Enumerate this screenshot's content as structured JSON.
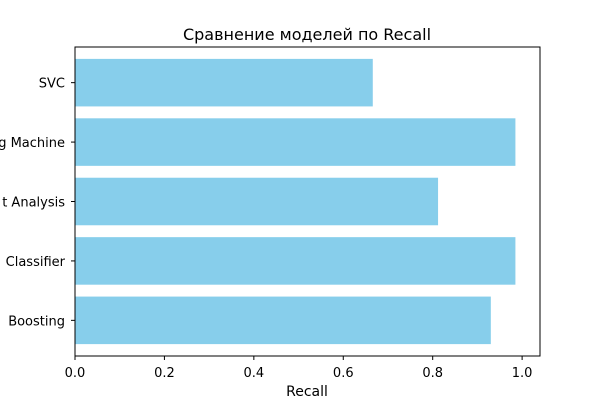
{
  "chart_data": {
    "type": "bar",
    "orientation": "horizontal",
    "title": "Сравнение моделей по Recall",
    "xlabel": "Recall",
    "ylabel": "",
    "categories": [
      "SVC",
      "g Machine",
      "t Analysis",
      "Classifier",
      "Boosting"
    ],
    "values": [
      0.666,
      0.985,
      0.812,
      0.985,
      0.93
    ],
    "xlim": [
      0.0,
      1.04
    ],
    "xticks": [
      "0.0",
      "0.2",
      "0.4",
      "0.6",
      "0.8",
      "1.0"
    ],
    "grid": false,
    "bar_color": "#87ceeb"
  }
}
